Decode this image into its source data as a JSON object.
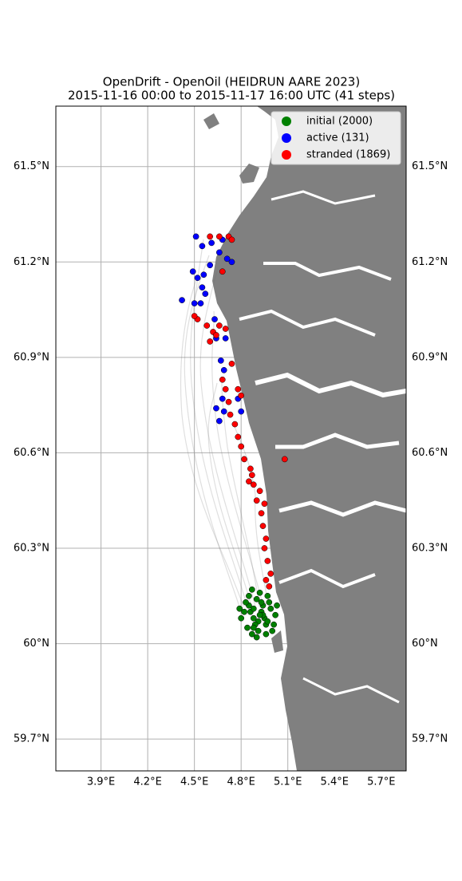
{
  "chart_data": {
    "type": "scatter",
    "title": "OpenDrift - OpenOil (HEIDRUN AARE 2023)",
    "subtitle": "2015-11-16 00:00 to 2015-11-17 16:00 UTC (41 steps)",
    "xlim": [
      3.61,
      5.86
    ],
    "ylim": [
      59.6,
      61.69
    ],
    "xticks": [
      {
        "value": 3.9,
        "label": "3.9°E"
      },
      {
        "value": 4.2,
        "label": "4.2°E"
      },
      {
        "value": 4.5,
        "label": "4.5°E"
      },
      {
        "value": 4.8,
        "label": "4.8°E"
      },
      {
        "value": 5.1,
        "label": "5.1°E"
      },
      {
        "value": 5.4,
        "label": "5.4°E"
      },
      {
        "value": 5.7,
        "label": "5.7°E"
      }
    ],
    "yticks": [
      {
        "value": 59.7,
        "label": "59.7°N"
      },
      {
        "value": 60.0,
        "label": "60°N"
      },
      {
        "value": 60.3,
        "label": "60.3°N"
      },
      {
        "value": 60.6,
        "label": "60.6°N"
      },
      {
        "value": 60.9,
        "label": "60.9°N"
      },
      {
        "value": 61.2,
        "label": "61.2°N"
      },
      {
        "value": 61.5,
        "label": "61.5°N"
      }
    ],
    "grid": true,
    "legend": "upper right",
    "series": [
      {
        "name": "initial (2000)",
        "color": "#008000",
        "x": [
          4.82,
          4.85,
          4.88,
          4.9,
          4.93,
          4.96,
          4.99,
          5.02,
          4.84,
          4.87,
          4.91,
          4.94,
          4.97,
          5.0,
          4.8,
          4.83,
          4.86,
          4.89,
          4.92,
          4.95,
          4.98,
          5.01,
          4.85,
          4.88,
          4.91,
          4.94,
          4.97,
          4.9,
          4.93,
          4.87,
          4.96,
          4.79,
          5.03,
          4.92,
          4.88
        ],
        "values": [
          60.1,
          60.12,
          60.08,
          60.14,
          60.1,
          60.06,
          60.11,
          60.09,
          60.05,
          60.03,
          60.07,
          60.12,
          60.15,
          60.04,
          60.08,
          60.13,
          60.1,
          60.06,
          60.16,
          60.08,
          60.13,
          60.06,
          60.15,
          60.11,
          60.04,
          60.09,
          60.07,
          60.02,
          60.13,
          60.17,
          60.03,
          60.11,
          60.12,
          60.09,
          60.05
        ]
      },
      {
        "name": "active (131)",
        "color": "#0000ff",
        "x": [
          4.51,
          4.55,
          4.61,
          4.68,
          4.66,
          4.71,
          4.74,
          4.6,
          4.49,
          4.52,
          4.56,
          4.55,
          4.57,
          4.54,
          4.42,
          4.5,
          4.63,
          4.7,
          4.64,
          4.67,
          4.69,
          4.64,
          4.69,
          4.66,
          4.8,
          4.78,
          4.68
        ],
        "values": [
          61.28,
          61.25,
          61.26,
          61.27,
          61.23,
          61.21,
          61.2,
          61.19,
          61.17,
          61.15,
          61.16,
          61.12,
          61.1,
          61.07,
          61.08,
          61.07,
          61.02,
          60.96,
          60.96,
          60.89,
          60.86,
          60.74,
          60.73,
          60.7,
          60.73,
          60.77,
          60.77
        ]
      },
      {
        "name": "stranded (1869)",
        "color": "#ff0000",
        "x": [
          4.98,
          4.99,
          4.97,
          4.95,
          4.96,
          4.94,
          4.93,
          4.95,
          4.92,
          4.88,
          4.85,
          4.86,
          4.82,
          4.8,
          4.78,
          4.76,
          4.73,
          4.72,
          4.7,
          4.68,
          4.78,
          4.8,
          4.74,
          4.6,
          4.62,
          4.58,
          4.52,
          4.5,
          4.66,
          4.7,
          4.64,
          4.6,
          4.66,
          4.72,
          4.74,
          4.68,
          5.08,
          4.9,
          4.96,
          4.87
        ],
        "values": [
          60.18,
          60.22,
          60.26,
          60.3,
          60.33,
          60.37,
          60.41,
          60.44,
          60.48,
          60.5,
          60.51,
          60.55,
          60.58,
          60.62,
          60.65,
          60.69,
          60.72,
          60.76,
          60.8,
          60.83,
          60.8,
          60.78,
          60.88,
          60.95,
          60.98,
          61.0,
          61.02,
          61.03,
          61.0,
          60.99,
          60.97,
          61.28,
          61.28,
          61.28,
          61.27,
          61.17,
          60.58,
          60.45,
          60.2,
          60.53
        ]
      }
    ]
  }
}
